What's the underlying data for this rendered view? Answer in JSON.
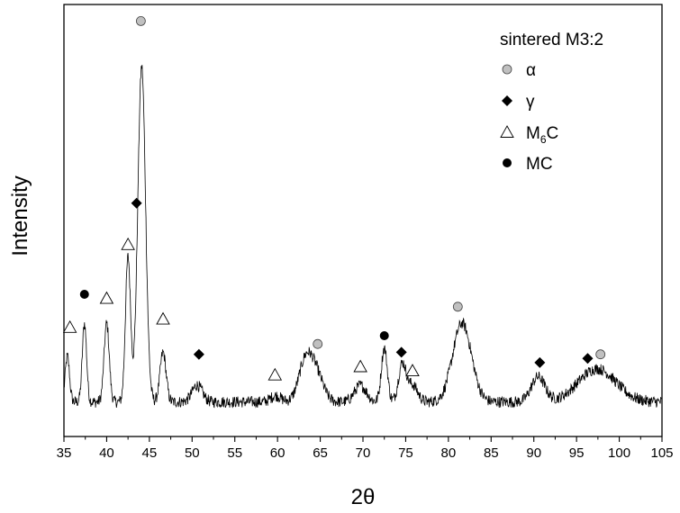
{
  "chart_data": {
    "type": "line",
    "title": "",
    "xlabel": "2θ",
    "ylabel": "Intensity",
    "xlim": [
      35,
      105
    ],
    "x_ticks": [
      35,
      40,
      45,
      50,
      55,
      60,
      65,
      70,
      75,
      80,
      85,
      90,
      95,
      100,
      105
    ],
    "x_tick_labels": [
      "35",
      "40",
      "45",
      "50",
      "55",
      "60",
      "65",
      "70",
      "75",
      "80",
      "85",
      "90",
      "95",
      "100",
      "105"
    ],
    "ylim": [
      0,
      100
    ],
    "y_ticks_shown": false,
    "grid": false,
    "baseline": 4,
    "noise": 1.4,
    "peaks": [
      {
        "x": 35.4,
        "h": 11,
        "w": 0.25
      },
      {
        "x": 37.4,
        "h": 19,
        "w": 0.25
      },
      {
        "x": 40.0,
        "h": 19,
        "w": 0.3
      },
      {
        "x": 42.5,
        "h": 35,
        "w": 0.3
      },
      {
        "x": 44.1,
        "h": 81,
        "w": 0.45
      },
      {
        "x": 46.6,
        "h": 12,
        "w": 0.35
      },
      {
        "x": 50.6,
        "h": 4,
        "w": 0.6
      },
      {
        "x": 59.8,
        "h": 1.5,
        "w": 0.6
      },
      {
        "x": 63.3,
        "h": 10,
        "w": 0.8
      },
      {
        "x": 64.6,
        "h": 6,
        "w": 0.8
      },
      {
        "x": 69.7,
        "h": 4,
        "w": 0.7
      },
      {
        "x": 72.5,
        "h": 13,
        "w": 0.35
      },
      {
        "x": 74.6,
        "h": 9,
        "w": 0.45
      },
      {
        "x": 75.8,
        "h": 4,
        "w": 0.6
      },
      {
        "x": 81.6,
        "h": 19,
        "w": 1.1
      },
      {
        "x": 90.5,
        "h": 6,
        "w": 0.8
      },
      {
        "x": 97.4,
        "h": 8,
        "w": 2.2
      }
    ],
    "markers": [
      {
        "phase": "α",
        "x": 44.0,
        "y": 96
      },
      {
        "phase": "α",
        "x": 64.7,
        "y": 18
      },
      {
        "phase": "α",
        "x": 81.1,
        "y": 27
      },
      {
        "phase": "α",
        "x": 97.8,
        "y": 15.5
      },
      {
        "phase": "γ",
        "x": 43.5,
        "y": 52
      },
      {
        "phase": "γ",
        "x": 50.8,
        "y": 15.5
      },
      {
        "phase": "γ",
        "x": 74.5,
        "y": 16
      },
      {
        "phase": "γ",
        "x": 90.7,
        "y": 13.5
      },
      {
        "phase": "γ",
        "x": 96.3,
        "y": 14.5
      },
      {
        "phase": "M6C",
        "x": 35.7,
        "y": 22
      },
      {
        "phase": "M6C",
        "x": 40.0,
        "y": 29
      },
      {
        "phase": "M6C",
        "x": 42.5,
        "y": 42
      },
      {
        "phase": "M6C",
        "x": 46.6,
        "y": 24
      },
      {
        "phase": "M6C",
        "x": 59.7,
        "y": 10.5
      },
      {
        "phase": "M6C",
        "x": 69.7,
        "y": 12.5
      },
      {
        "phase": "M6C",
        "x": 75.8,
        "y": 11.5
      },
      {
        "phase": "MC",
        "x": 37.4,
        "y": 30
      },
      {
        "phase": "MC",
        "x": 72.5,
        "y": 20
      }
    ],
    "legend": {
      "title": "sintered M3:2",
      "placement": "top-right",
      "entries": [
        {
          "phase": "α",
          "label": "α",
          "marker": "circle-grey"
        },
        {
          "phase": "γ",
          "label": "γ",
          "marker": "diamond-black"
        },
        {
          "phase": "M6C",
          "label": "M",
          "sub": "6",
          "suffix": "C",
          "marker": "triangle-open"
        },
        {
          "phase": "MC",
          "label": "MC",
          "marker": "circle-black"
        }
      ]
    },
    "colors": {
      "line": "#000000",
      "alpha_fill": "#c0c0c0",
      "dark": "#000000"
    }
  }
}
